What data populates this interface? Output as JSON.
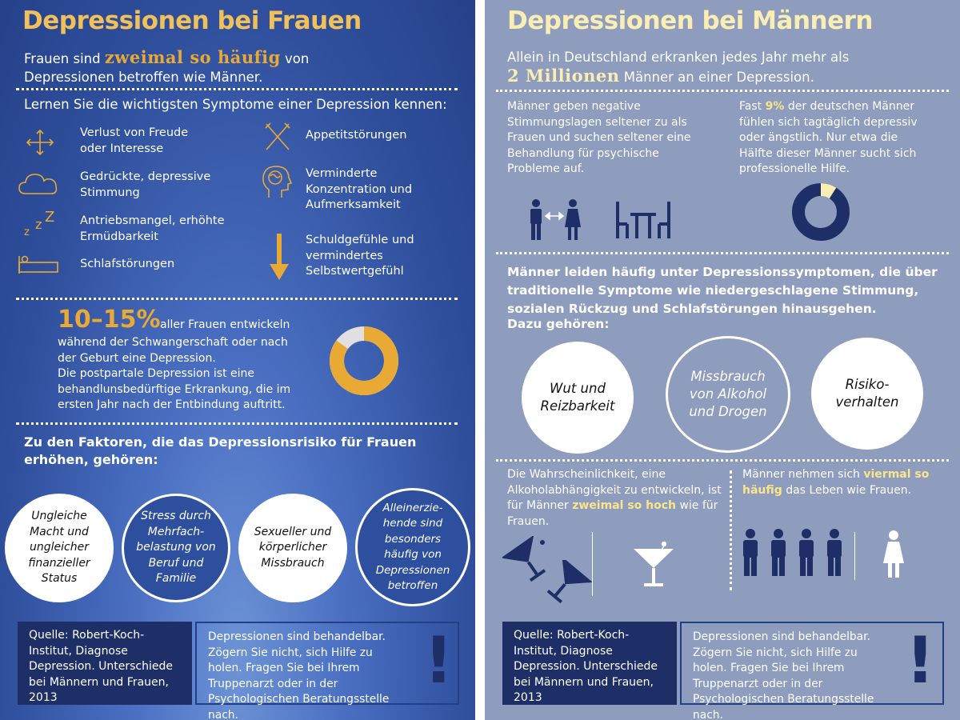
{
  "left": {
    "title": "Depressionen bei Frauen",
    "intro_a": "Frauen sind",
    "intro_accent": "zweimal so häufig",
    "intro_b": "von",
    "intro_c": "Depressionen betroffen wie Männer.",
    "symptoms_heading": "Lernen Sie die wichtigsten Symptome einer Depression kennen:",
    "symptoms": {
      "s1": "Verlust von Freude oder Interesse",
      "s2": "Gedrückte, depressive Stimmung",
      "s3": "Antriebsmangel, erhöhte Ermüdbarkeit",
      "s4": "Schlafstörungen",
      "s5": "Appetitstörungen",
      "s6": "Verminderte Konzentration und Aufmerksamkeit",
      "s7": "Schuldgefühle und vermindertes Selbstwertgefühl"
    },
    "stat_value": "10–15%",
    "stat_text_a": "aller Frauen entwickeln",
    "stat_text_b": "während der Schwangerschaft oder nach der Geburt eine Depression.",
    "stat_text_c": "Die postpartale Depression ist eine behandlunsbedürftige Erkrankung, die im ersten Jahr nach der Entbindung auftritt.",
    "stat_donut_fraction": 0.85,
    "factors_heading": "Zu den Faktoren, die das Depressionsrisiko für Frauen erhöhen, gehören:",
    "factors": {
      "f1": "Ungleiche Macht und ungleicher finanzieller Status",
      "f2": "Stress durch Mehrfach- belastung von Beruf und Familie",
      "f3": "Sexueller und körperlicher Missbrauch",
      "f4": "Alleinerzie- hende sind besonders häufig von Depressionen betroffen"
    },
    "source": "Quelle: Robert-Koch-Institut, Diagnose Depression. Unterschiede bei Männern und Frauen, 2013",
    "help": "Depressionen sind behandelbar. Zögern Sie nicht, sich Hilfe zu holen. Fragen Sie bei Ihrem Truppenarzt oder in der Psychologischen Beratungsstelle nach.",
    "exclamation": "!"
  },
  "right": {
    "title": "Depressionen bei Männern",
    "intro_a": "Allein in Deutschland erkranken jedes Jahr mehr als",
    "intro_accent": "2 Millionen",
    "intro_b": "Männer an einer Depression.",
    "col1": "Männer geben negative Stimmungslagen seltener zu als Frauen und suchen seltener eine Behandlung für psychische Probleme auf.",
    "col2_a": "Fast",
    "col2_hl": "9%",
    "col2_b": "der deutschen Männer fühlen sich tagtäglich depressiv oder ängstlich. Nur etwa die Hälfte dieser Männer sucht sich professionelle Hilfe.",
    "donut_fraction": 0.09,
    "symptoms_paragraph": "Männer leiden häufig unter Depressionssymptomen, die über traditionelle Symptome wie niedergeschlagene Stimmung, sozialen Rückzug und Schlafstörungen hinausgehen.",
    "symptoms_tail": "Dazu gehören:",
    "circles": {
      "c1": "Wut und Reizbarkeit",
      "c2": "Missbrauch von Alkohol und Drogen",
      "c3": "Risiko- verhalten"
    },
    "alc_a": "Die Wahrscheinlichkeit, eine Alkoholabhängigkeit zu entwickeln, ist für Männer",
    "alc_hl": "zweimal so hoch",
    "alc_b": "wie für Frauen.",
    "suicide_a": "Männer nehmen sich",
    "suicide_hl": "viermal so häufig",
    "suicide_b": "das Leben wie Frauen.",
    "source": "Quelle: Robert-Koch-Institut, Diagnose Depression. Unterschiede bei Männern und Frauen, 2013",
    "help": "Depressionen sind behandelbar. Zögern Sie nicht, sich Hilfe zu holen. Fragen Sie bei Ihrem Truppenarzt oder in der Psychologischen Beratungsstelle nach.",
    "exclamation": "!"
  },
  "colors": {
    "left_title": "#f0c05b",
    "left_icon": "#e8aa35",
    "right_title": "#fbeeb5",
    "navy": "#1d2f66",
    "highlight": "#fbe58a"
  }
}
